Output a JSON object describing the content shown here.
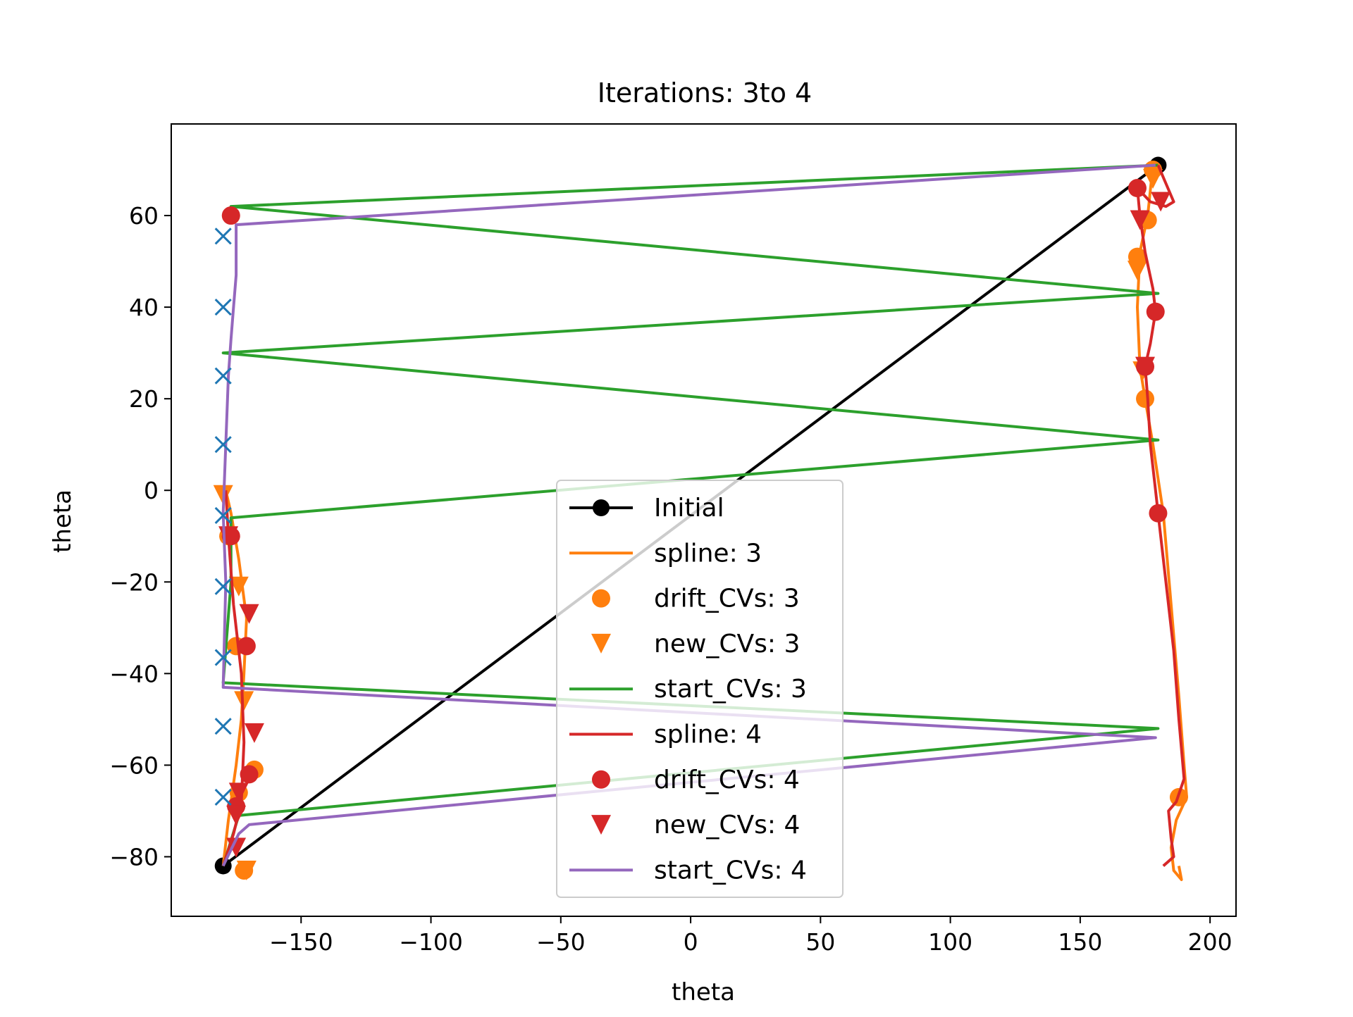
{
  "chart_data": {
    "type": "line",
    "title": "Iterations: 3to 4",
    "xlabel": "theta",
    "ylabel": "theta",
    "xlim": [
      -200,
      210
    ],
    "ylim": [
      -93,
      80
    ],
    "xticks": [
      -150,
      -100,
      -50,
      0,
      50,
      100,
      150,
      200
    ],
    "yticks": [
      -80,
      -60,
      -40,
      -20,
      0,
      20,
      40,
      60
    ],
    "xtick_labels": [
      "−150",
      "−100",
      "−50",
      "0",
      "50",
      "100",
      "150",
      "200"
    ],
    "ytick_labels": [
      "−80",
      "−60",
      "−40",
      "−20",
      "0",
      "20",
      "40",
      "60"
    ],
    "grid": false,
    "legend_position": "lower-center",
    "colors": {
      "initial": "#000000",
      "orange": "#ff7f0e",
      "green": "#2ca02c",
      "red": "#d62728",
      "purple": "#9467bd",
      "blue": "#1f77b4"
    },
    "series": [
      {
        "key": "initial",
        "name": "Initial",
        "kind": "line-marker",
        "color": "#000000",
        "points": [
          [
            -180,
            -82
          ],
          [
            180,
            71
          ]
        ]
      },
      {
        "key": "spline3",
        "name": "spline: 3",
        "kind": "line",
        "color": "#ff7f0e",
        "points": [
          [
            -180,
            -82
          ],
          [
            -178,
            -72
          ],
          [
            -175,
            -60
          ],
          [
            -173,
            -50
          ],
          [
            -172,
            -40
          ],
          [
            -171,
            -28
          ],
          [
            -174,
            -15
          ],
          [
            -177,
            -5
          ],
          [
            -179,
            0
          ]
        ]
      },
      {
        "key": "spline3r",
        "name": "",
        "kind": "line",
        "color": "#ff7f0e",
        "points": [
          [
            178,
            71
          ],
          [
            176,
            60
          ],
          [
            173,
            52
          ],
          [
            172,
            40
          ],
          [
            173,
            27
          ],
          [
            175,
            20
          ],
          [
            178,
            10
          ],
          [
            182,
            -5
          ],
          [
            185,
            -25
          ],
          [
            188,
            -45
          ],
          [
            190,
            -60
          ],
          [
            191,
            -67
          ],
          [
            187,
            -72
          ],
          [
            185,
            -78
          ],
          [
            186,
            -83
          ],
          [
            189,
            -85
          ],
          [
            188,
            -82
          ]
        ]
      },
      {
        "key": "drift3",
        "name": "drift_CVs: 3",
        "kind": "circle",
        "color": "#ff7f0e",
        "points": [
          [
            178,
            70
          ],
          [
            176,
            59
          ],
          [
            172,
            51
          ],
          [
            175,
            20
          ],
          [
            -172,
            -83
          ],
          [
            -168,
            -61
          ],
          [
            -174,
            -66
          ],
          [
            -175,
            -34
          ],
          [
            -178,
            -10
          ],
          [
            188,
            -67
          ]
        ]
      },
      {
        "key": "new3",
        "name": "new_CVs: 3",
        "kind": "triangle",
        "color": "#ff7f0e",
        "points": [
          [
            -180,
            -1
          ],
          [
            -174,
            -21
          ],
          [
            -172,
            -46
          ],
          [
            -171,
            -83
          ],
          [
            174,
            26
          ],
          [
            178,
            68
          ],
          [
            172,
            48
          ]
        ]
      },
      {
        "key": "start3",
        "name": "start_CVs: 3",
        "kind": "line",
        "color": "#2ca02c",
        "points": [
          [
            -180,
            -82
          ],
          [
            -174,
            -71
          ],
          [
            180,
            -52
          ],
          [
            -180,
            -42
          ],
          [
            -177,
            -20
          ],
          [
            -177,
            -6
          ],
          [
            180,
            11
          ],
          [
            -180,
            30
          ],
          [
            180,
            43
          ],
          [
            -177,
            62
          ],
          [
            180,
            71
          ]
        ]
      },
      {
        "key": "spline4",
        "name": "spline: 4",
        "kind": "line",
        "color": "#d62728",
        "points": [
          [
            -180,
            -82
          ],
          [
            -176,
            -75
          ],
          [
            -173,
            -68
          ],
          [
            -172,
            -55
          ],
          [
            -173,
            -40
          ],
          [
            -176,
            -25
          ],
          [
            -178,
            -10
          ],
          [
            -179,
            0
          ]
        ]
      },
      {
        "key": "spline4r",
        "name": "",
        "kind": "line",
        "color": "#d62728",
        "points": [
          [
            180,
            71
          ],
          [
            183,
            67
          ],
          [
            186,
            63
          ],
          [
            183,
            62
          ],
          [
            177,
            63
          ],
          [
            172,
            66
          ],
          [
            173,
            60
          ],
          [
            175,
            52
          ],
          [
            178,
            44
          ],
          [
            179,
            39
          ],
          [
            177,
            32
          ],
          [
            175,
            27
          ],
          [
            176,
            20
          ],
          [
            177,
            10
          ],
          [
            179,
            0
          ],
          [
            180,
            -5
          ],
          [
            183,
            -20
          ],
          [
            186,
            -35
          ],
          [
            188,
            -50
          ],
          [
            190,
            -63
          ],
          [
            187,
            -68
          ],
          [
            184,
            -70
          ],
          [
            185,
            -76
          ],
          [
            186,
            -80
          ],
          [
            182,
            -82
          ]
        ]
      },
      {
        "key": "drift4",
        "name": "drift_CVs: 4",
        "kind": "circle",
        "color": "#d62728",
        "points": [
          [
            -177,
            60
          ],
          [
            172,
            66
          ],
          [
            179,
            39
          ],
          [
            175,
            27
          ],
          [
            180,
            -5
          ],
          [
            -171,
            -34
          ],
          [
            -170,
            -62
          ],
          [
            -175,
            -69
          ],
          [
            -177,
            -10
          ]
        ]
      },
      {
        "key": "new4",
        "name": "new_CVs: 4",
        "kind": "triangle",
        "color": "#d62728",
        "points": [
          [
            -170,
            -27
          ],
          [
            -168,
            -53
          ],
          [
            -174,
            -66
          ],
          [
            -175,
            -71
          ],
          [
            -175,
            -78
          ],
          [
            173,
            59
          ],
          [
            181,
            63
          ],
          [
            175,
            27
          ],
          [
            -178,
            -10
          ]
        ]
      },
      {
        "key": "start4",
        "name": "start_CVs: 4",
        "kind": "line",
        "color": "#9467bd",
        "points": [
          [
            -180,
            -82
          ],
          [
            -174,
            -75
          ],
          [
            -170,
            -73
          ],
          [
            179,
            -54
          ],
          [
            -180,
            -43
          ],
          [
            -179,
            -20
          ],
          [
            -180,
            -5
          ],
          [
            -179,
            10
          ],
          [
            -178,
            25
          ],
          [
            -177,
            33
          ],
          [
            -176,
            40
          ],
          [
            -175,
            47
          ],
          [
            -175,
            58
          ],
          [
            179,
            71
          ]
        ]
      },
      {
        "key": "crosses",
        "name": "",
        "kind": "cross",
        "color": "#1f77b4",
        "points": [
          [
            -180,
            55.5
          ],
          [
            -180,
            40
          ],
          [
            -180,
            25
          ],
          [
            -180,
            10
          ],
          [
            -180,
            -5.5
          ],
          [
            -180,
            -21
          ],
          [
            -180,
            -36.5
          ],
          [
            -180,
            -51.5
          ],
          [
            -180,
            -67
          ]
        ]
      }
    ],
    "legend": [
      "Initial",
      "spline: 3",
      "drift_CVs: 3",
      "new_CVs: 3",
      "start_CVs: 3",
      "spline: 4",
      "drift_CVs: 4",
      "new_CVs: 4",
      "start_CVs: 4"
    ]
  }
}
